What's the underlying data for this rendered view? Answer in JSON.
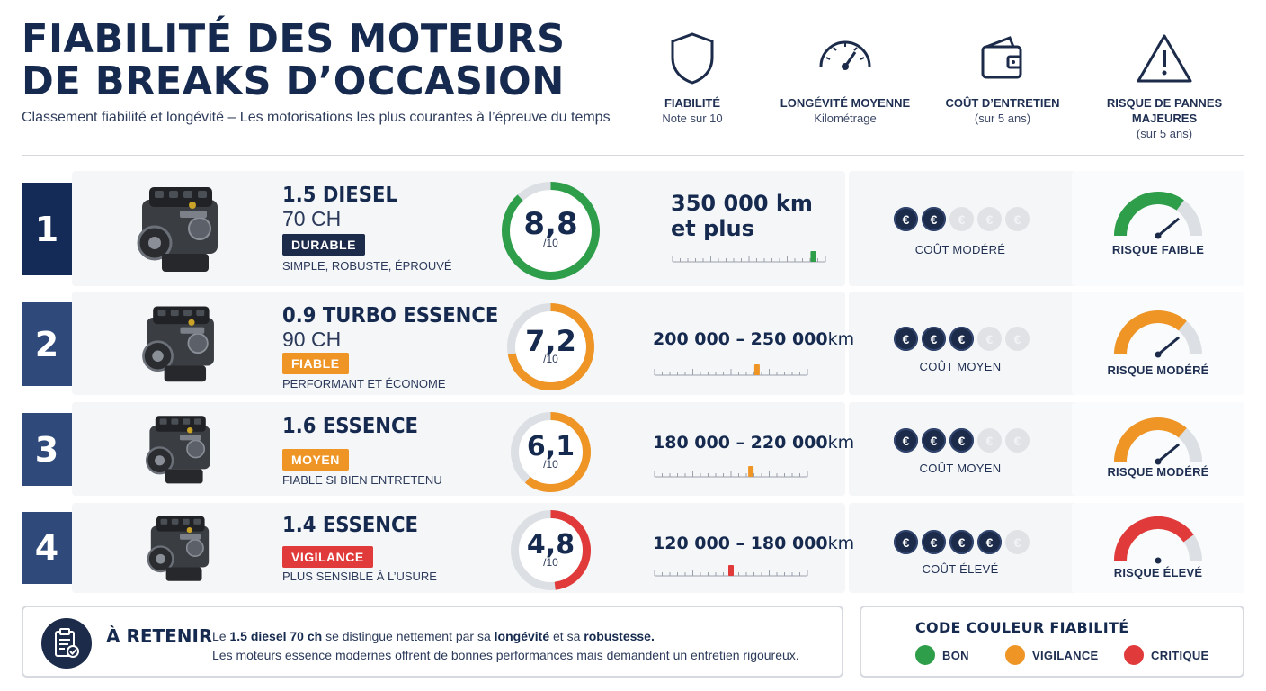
{
  "title_line1": "FIABILITÉ DES MOTEURS",
  "title_line2": "DE BREAKS D’OCCASION",
  "subtitle": "Classement fiabilité et longévité – Les motorisations les plus courantes à l’épreuve du temps",
  "headers": [
    {
      "icon": "shield-icon",
      "title": "FIABILITÉ",
      "sub": "Note sur 10"
    },
    {
      "icon": "speedometer-icon",
      "title": "LONGÉVITÉ MOYENNE",
      "sub": "Kilométrage"
    },
    {
      "icon": "wallet-icon",
      "title": "COÛT D’ENTRETIEN",
      "sub": "(sur 5 ans)"
    },
    {
      "icon": "warning-icon",
      "title": "RISQUE DE PANNES MAJEURES",
      "sub": "(sur 5 ans)"
    }
  ],
  "colors": {
    "navy": "#1c2b4a",
    "rank_dark": "#142a57",
    "rank_mid": "#2f4a7a",
    "good": "#2e9e4a",
    "warn": "#ee9526",
    "critical": "#e03a3a"
  },
  "engines": [
    {
      "rank": "1",
      "name": "1.5 DIESEL",
      "power": "70 CH",
      "badge": "DURABLE",
      "badge_color": "#1c2b4a",
      "desc": "SIMPLE, ROBUSTE, ÉPROUVÉ",
      "score": "8,8",
      "score_value": 8.8,
      "score_den": "/10",
      "score_color": "#2e9e4a",
      "km_bold": "350 000 km",
      "km_rest": "et plus",
      "km_marker": 0.92,
      "km_color": "#2e9e4a",
      "coins_filled": 2,
      "cost_label": "COÛT MODÉRÉ",
      "risk_label": "RISQUE FAIBLE",
      "risk_color": "#2e9e4a",
      "risk_level": 0.3
    },
    {
      "rank": "2",
      "name": "0.9 TURBO ESSENCE",
      "power": "90 CH",
      "badge": "FIABLE",
      "badge_color": "#ee9526",
      "desc": "PERFORMANT ET ÉCONOME",
      "score": "7,2",
      "score_value": 7.2,
      "score_den": "/10",
      "score_color": "#ee9526",
      "km_bold": "200 000 – 250 000",
      "km_rest": "km",
      "km_marker": 0.67,
      "km_color": "#ee9526",
      "coins_filled": 3,
      "cost_label": "COÛT MOYEN",
      "risk_label": "RISQUE MODÉRÉ",
      "risk_color": "#ee9526",
      "risk_level": 0.35
    },
    {
      "rank": "3",
      "name": "1.6 ESSENCE",
      "power": "",
      "badge": "MOYEN",
      "badge_color": "#ee9526",
      "desc": "FIABLE SI BIEN ENTRETENU",
      "score": "6,1",
      "score_value": 6.1,
      "score_den": "/10",
      "score_color": "#ee9526",
      "km_bold": "180 000 – 220 000",
      "km_rest": "km",
      "km_marker": 0.63,
      "km_color": "#ee9526",
      "coins_filled": 3,
      "cost_label": "COÛT MOYEN",
      "risk_label": "RISQUE MODÉRÉ",
      "risk_color": "#ee9526",
      "risk_level": 0.35
    },
    {
      "rank": "4",
      "name": "1.4 ESSENCE",
      "power": "",
      "badge": "VIGILANCE",
      "badge_color": "#e03a3a",
      "desc": "PLUS SENSIBLE À L’USURE",
      "score": "4,8",
      "score_value": 4.8,
      "score_den": "/10",
      "score_color": "#e03a3a",
      "km_bold": "120 000 – 180 000",
      "km_rest": "km",
      "km_marker": 0.5,
      "km_color": "#e03a3a",
      "coins_filled": 4,
      "cost_label": "COÛT ÉLEVÉ",
      "risk_label": "RISQUE ÉLEVÉ",
      "risk_color": "#e03a3a",
      "risk_level": 0.5
    }
  ],
  "retain": {
    "title": "À RETENIR",
    "l1_a": "Le ",
    "l1_b": "1.5 diesel 70 ch",
    "l1_c": " se distingue nettement par sa ",
    "l1_d": "longévité",
    "l1_e": " et sa ",
    "l1_f": "robustesse.",
    "l2": "Les moteurs essence modernes offrent de bonnes performances mais demandent un entretien rigoureux."
  },
  "legend": {
    "title": "CODE COULEUR FIABILITÉ",
    "items": [
      {
        "label": "BON",
        "color": "#2e9e4a"
      },
      {
        "label": "VIGILANCE",
        "color": "#ee9526"
      },
      {
        "label": "CRITIQUE",
        "color": "#e03a3a"
      }
    ]
  }
}
